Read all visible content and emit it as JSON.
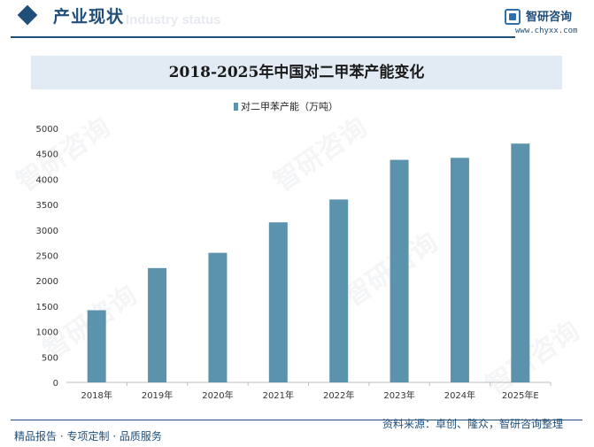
{
  "header": {
    "section_title": "产业现状",
    "section_ghost": "Industry status",
    "brand_name": "智研咨询",
    "brand_url": "www.chyxx.com"
  },
  "footer": {
    "left_text": "精品报告 · 专项定制 · 品质服务",
    "source_text": "资料来源：卓创、隆众，智研咨询整理"
  },
  "watermark": {
    "text": "智研咨询"
  },
  "colors": {
    "bar": "#5b93ad",
    "brand": "#1f4e79",
    "title_band": "#e2ebf3"
  },
  "chart_data": {
    "type": "bar",
    "title": "2018-2025年中国对二甲苯产能变化",
    "categories": [
      "2018年",
      "2019年",
      "2020年",
      "2021年",
      "2022年",
      "2023年",
      "2024年",
      "2025年E"
    ],
    "series": [
      {
        "name": "对二甲苯产能（万吨）",
        "values": [
          1420,
          2250,
          2550,
          3150,
          3600,
          4380,
          4420,
          4700
        ]
      }
    ],
    "ylim": [
      0,
      5000
    ],
    "yticks": [
      0,
      500,
      1000,
      1500,
      2000,
      2500,
      3000,
      3500,
      4000,
      4500,
      5000
    ],
    "grid": false,
    "legend": "top-center"
  }
}
